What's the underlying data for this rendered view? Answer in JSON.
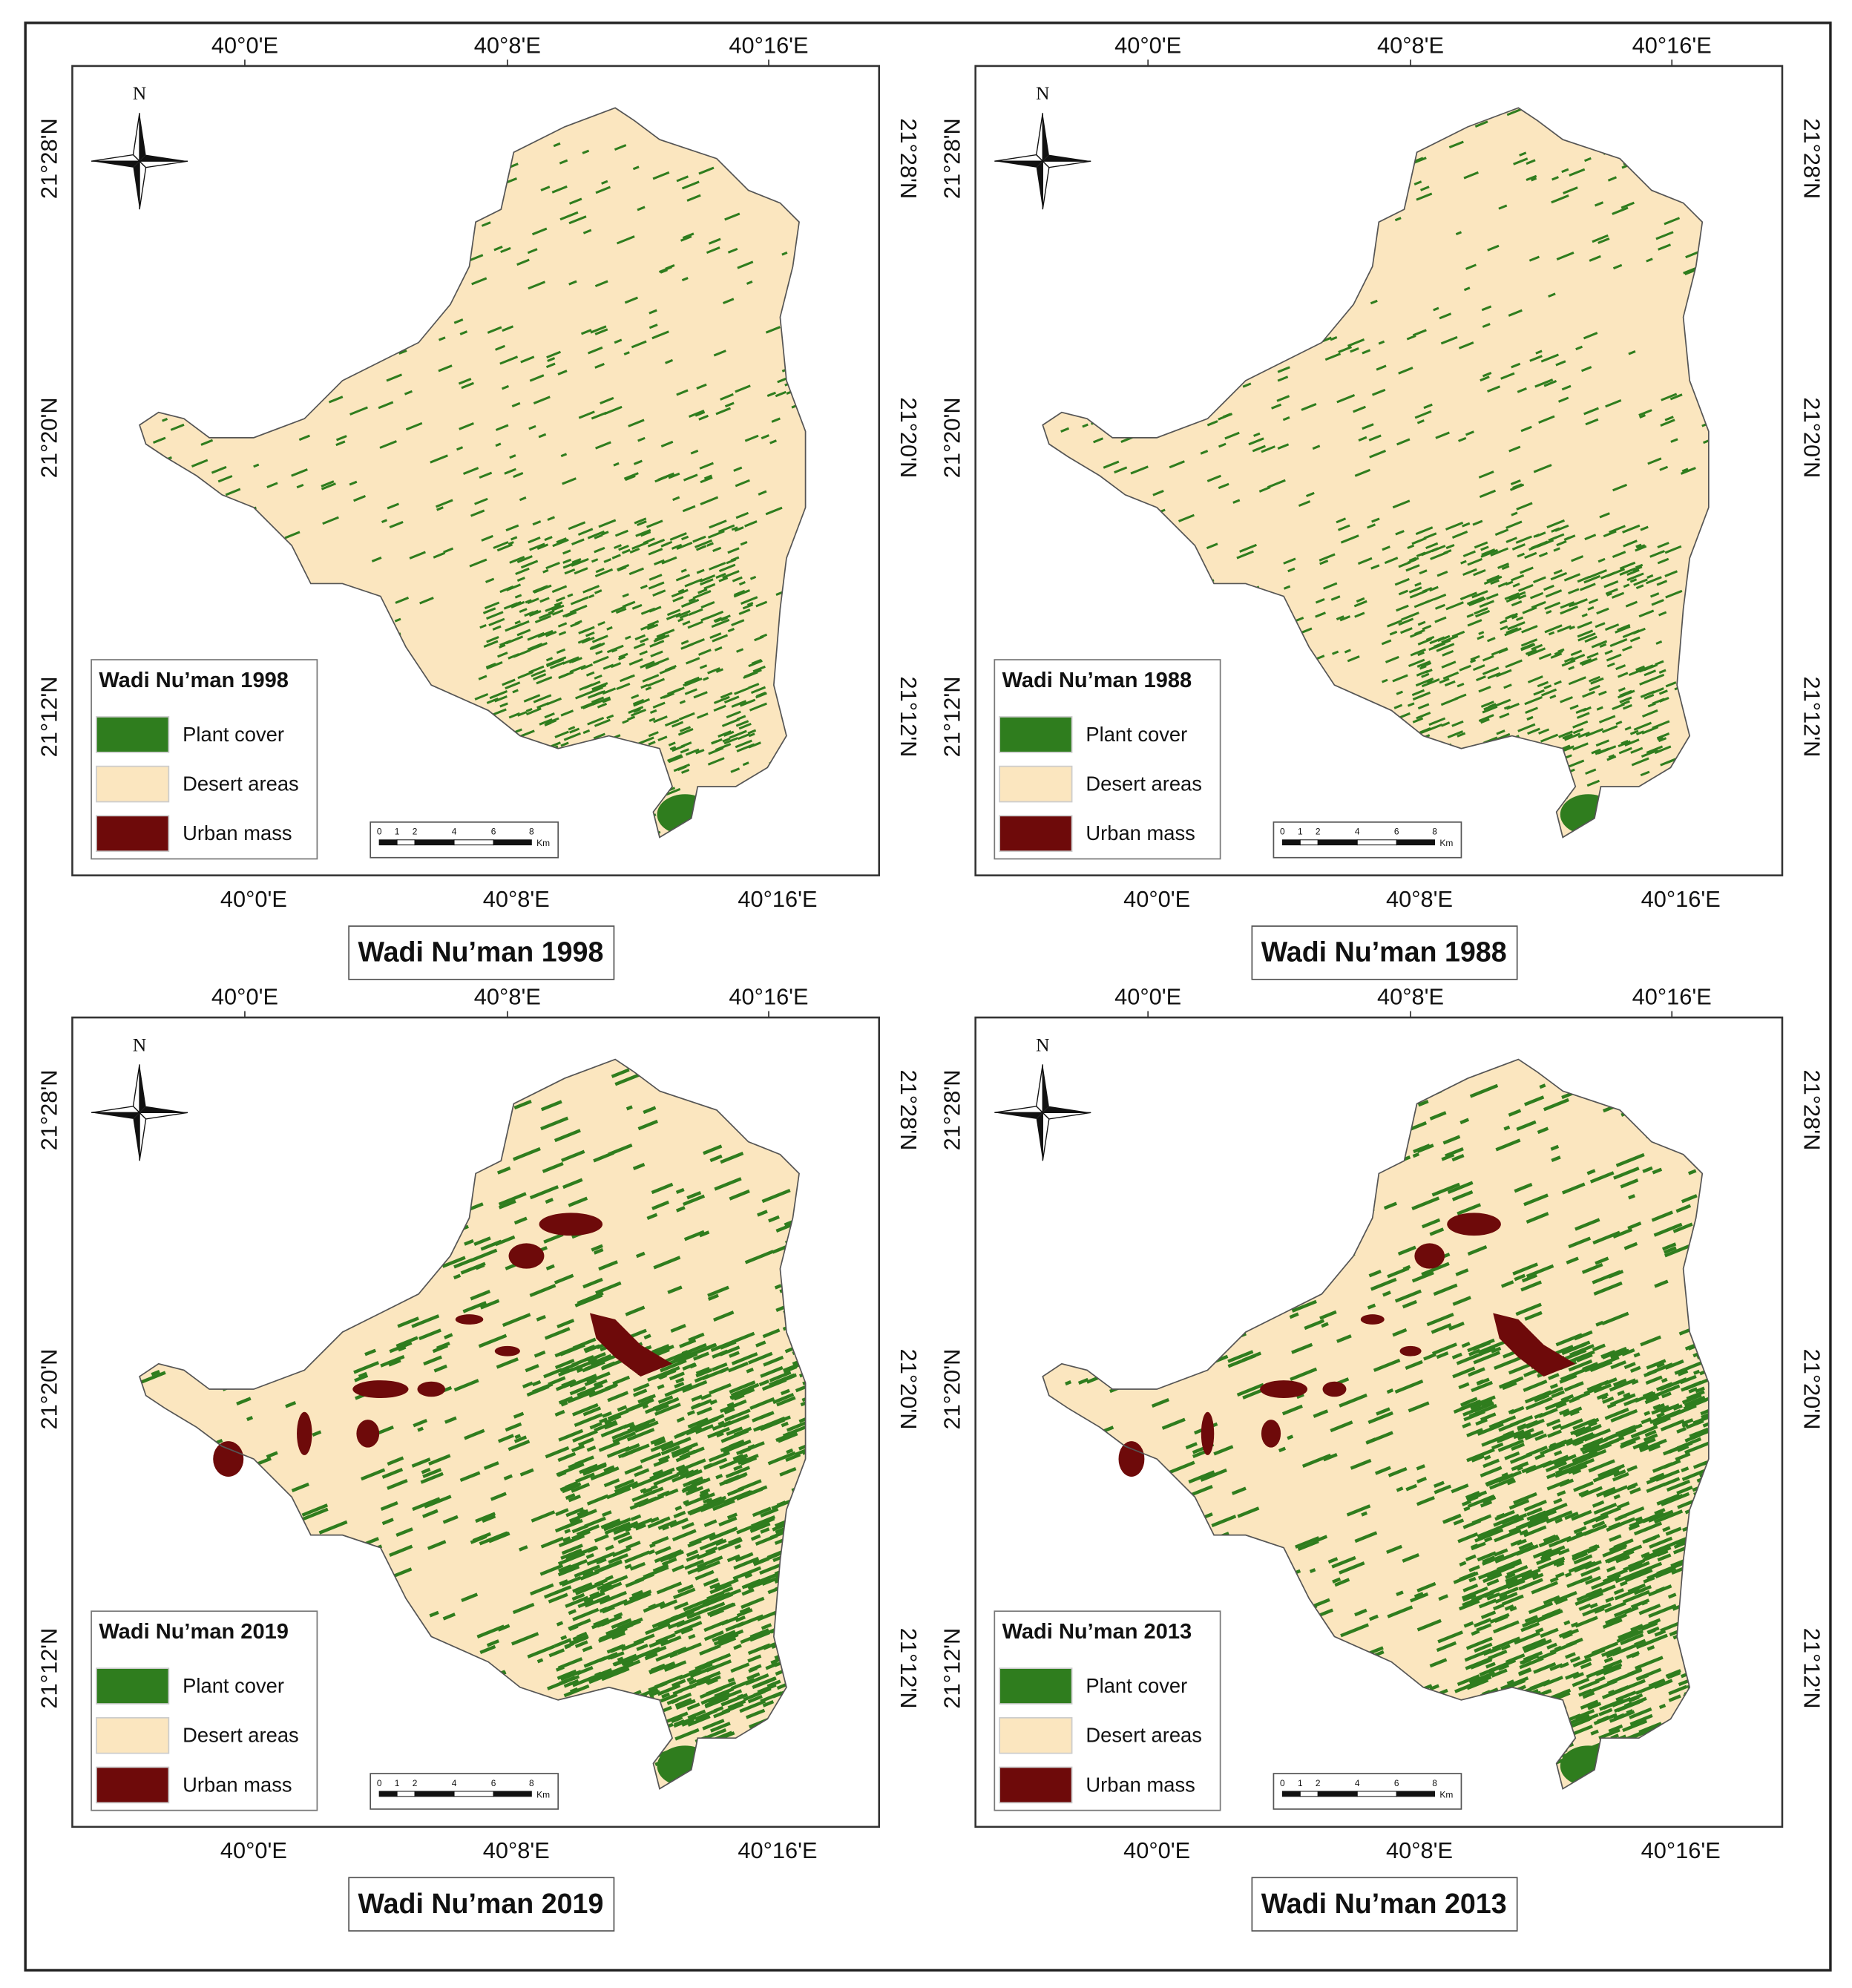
{
  "panels": [
    {
      "title": "Wadi Nu’man 1998",
      "legend_title": "Wadi Nu’man 1998"
    },
    {
      "title": "Wadi Nu’man 1988",
      "legend_title": "Wadi Nu’man 1988"
    },
    {
      "title": "Wadi Nu’man 2019",
      "legend_title": "Wadi Nu’man 2019"
    },
    {
      "title": "Wadi Nu’man 2013",
      "legend_title": "Wadi Nu’man 2013"
    }
  ],
  "legend": [
    {
      "label": "Plant cover",
      "color": "#2f7d1e"
    },
    {
      "label": "Desert areas",
      "color": "#fbe6bf"
    },
    {
      "label": "Urban mass",
      "color": "#6e0a0a"
    }
  ],
  "x_ticks": [
    "40°0'E",
    "40°8'E",
    "40°16'E"
  ],
  "y_ticks": [
    "21°28'N",
    "21°20'N",
    "21°12'N"
  ],
  "north": "N",
  "scale_labels": [
    "0",
    "1",
    "2",
    "4",
    "6",
    "8"
  ],
  "scale_unit": "Km"
}
